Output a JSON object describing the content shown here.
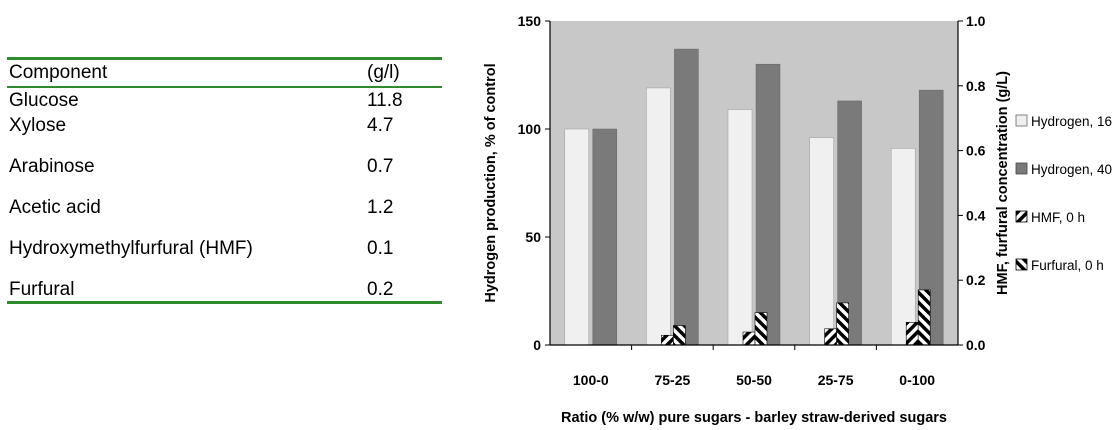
{
  "table": {
    "headers": [
      "Component",
      "(g/l)"
    ],
    "rows": [
      {
        "name": "Glucose",
        "value": "11.8"
      },
      {
        "name": "Xylose",
        "value": "4.7"
      },
      {
        "name": "Arabinose",
        "value": "0.7"
      },
      {
        "name": "Acetic acid",
        "value": "1.2"
      },
      {
        "name": "Hydroxymethylfurfural (HMF)",
        "value": "0.1"
      },
      {
        "name": "Furfural",
        "value": "0.2"
      }
    ]
  },
  "chart_data": {
    "type": "bar",
    "categories": [
      "100-0",
      "75-25",
      "50-50",
      "25-75",
      "0-100"
    ],
    "xlabel": "Ratio (% w/w) pure sugars - barley straw-derived sugars",
    "ylabel": "Hydrogen production, % of control",
    "y2label": "HMF, furfural concentration (g/L)",
    "ylim": [
      0,
      150
    ],
    "y2lim": [
      0,
      1.0
    ],
    "yticks": [
      "0",
      "50",
      "100",
      "150"
    ],
    "y2ticks": [
      "0.0",
      "0.2",
      "0.4",
      "0.6",
      "0.8",
      "1.0"
    ],
    "legend_position": "right",
    "series": [
      {
        "name": "Hydrogen, 16 h",
        "axis": "left",
        "values": [
          100,
          119,
          109,
          96,
          91
        ],
        "color": "#f0f0f0"
      },
      {
        "name": "Hydrogen, 40 h",
        "axis": "left",
        "values": [
          100,
          137,
          130,
          113,
          118
        ],
        "color": "#7a7a7a"
      },
      {
        "name": "HMF, 0 h",
        "axis": "right",
        "values": [
          0,
          0.03,
          0.04,
          0.05,
          0.07
        ],
        "pattern": "hatch-right"
      },
      {
        "name": "Furfural, 0 h",
        "axis": "right",
        "values": [
          0,
          0.06,
          0.1,
          0.13,
          0.17
        ],
        "pattern": "hatch-left"
      }
    ]
  }
}
